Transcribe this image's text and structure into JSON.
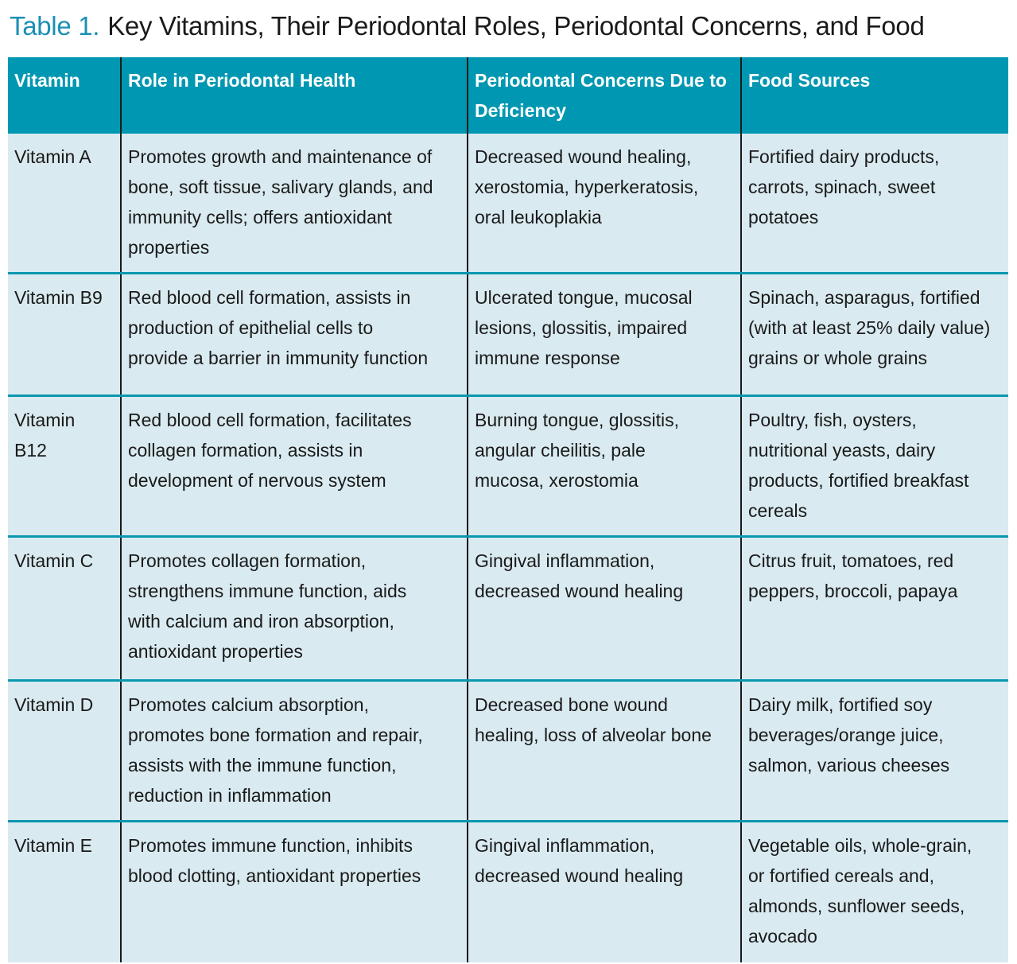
{
  "title": {
    "number": "Table 1.",
    "text": "Key Vitamins, Their Periodontal Roles, Periodontal Concerns, and Food"
  },
  "colors": {
    "header": "#0097b2",
    "row": "#d9eaf0",
    "accent": "#1b8fb5"
  },
  "columns": [
    "Vitamin",
    "Role in Periodontal Health",
    "Periodontal Concerns Due to\nDeficiency",
    "Food Sources"
  ],
  "rows": [
    {
      "vitamin": "Vitamin A",
      "role": "Promotes growth and maintenance of\nbone, soft tissue, salivary glands, and\nimmunity cells; offers antioxidant\nproperties",
      "concerns": "Decreased wound healing,\nxerostomia, hyperkeratosis,\noral leukoplakia",
      "food": "Fortified dairy products,\ncarrots, spinach, sweet\npotatoes"
    },
    {
      "vitamin": "Vitamin B9",
      "role": "Red blood cell formation, assists in\nproduction of epithelial cells to\nprovide a barrier in immunity function",
      "concerns": "Ulcerated tongue, mucosal\nlesions, glossitis, impaired\nimmune response",
      "food": "Spinach, asparagus, fortified\n(with at least 25% daily value)\ngrains or whole grains"
    },
    {
      "vitamin": "Vitamin\nB12",
      "role": "Red blood cell formation, facilitates\ncollagen formation, assists in\ndevelopment of nervous system",
      "concerns": "Burning tongue, glossitis,\nangular cheilitis, pale\nmucosa, xerostomia",
      "food": "Poultry, fish, oysters,\nnutritional yeasts, dairy\nproducts, fortified breakfast\ncereals"
    },
    {
      "vitamin": "Vitamin C",
      "role": "Promotes collagen formation,\nstrengthens immune function, aids\nwith calcium and iron absorption,\nantioxidant properties",
      "concerns": "Gingival inflammation,\ndecreased wound healing",
      "food": "Citrus fruit, tomatoes, red\npeppers, broccoli, papaya"
    },
    {
      "vitamin": "Vitamin D",
      "role": "Promotes calcium absorption,\npromotes bone formation and repair,\nassists with the immune function,\nreduction in inflammation",
      "concerns": "Decreased bone wound\nhealing, loss of alveolar bone",
      "food": "Dairy milk, fortified soy\nbeverages/orange juice,\nsalmon, various cheeses"
    },
    {
      "vitamin": "Vitamin E",
      "role": "Promotes immune function, inhibits\nblood clotting, antioxidant properties",
      "concerns": "Gingival inflammation,\ndecreased wound healing",
      "food": "Vegetable oils, whole-grain,\nor fortified cereals and,\nalmonds, sunflower seeds,\navocado"
    }
  ]
}
